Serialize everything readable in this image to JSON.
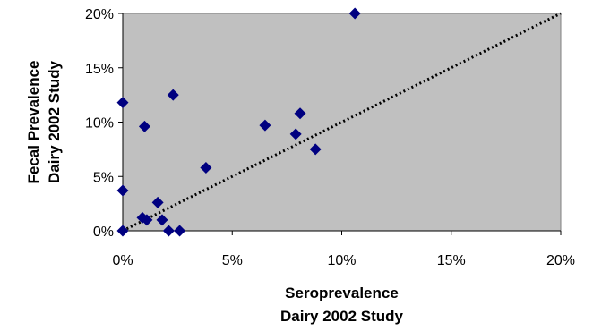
{
  "chart_data": {
    "type": "scatter",
    "xlabel": [
      "Seroprevalence",
      "Dairy 2002 Study"
    ],
    "ylabel": [
      "Fecal Prevalence",
      "Dairy 2002 Study"
    ],
    "xlim": [
      0,
      20
    ],
    "ylim": [
      0,
      20
    ],
    "x_ticks": [
      "0%",
      "5%",
      "10%",
      "15%",
      "20%"
    ],
    "y_ticks": [
      "0%",
      "5%",
      "10%",
      "15%",
      "20%"
    ],
    "x_tick_values": [
      0,
      5,
      10,
      15,
      20
    ],
    "y_tick_values": [
      0,
      5,
      10,
      15,
      20
    ],
    "grid": false,
    "plot_background": "#c0c0c0",
    "marker_color": "#000080",
    "marker_shape": "diamond",
    "series": [
      {
        "points": [
          {
            "x": 0.0,
            "y": 11.8
          },
          {
            "x": 0.0,
            "y": 3.7
          },
          {
            "x": 0.0,
            "y": 0.0
          },
          {
            "x": 1.0,
            "y": 9.6
          },
          {
            "x": 0.9,
            "y": 1.2
          },
          {
            "x": 1.1,
            "y": 1.0
          },
          {
            "x": 1.6,
            "y": 2.6
          },
          {
            "x": 1.8,
            "y": 1.0
          },
          {
            "x": 2.1,
            "y": 0.0
          },
          {
            "x": 2.6,
            "y": 0.0
          },
          {
            "x": 2.3,
            "y": 12.5
          },
          {
            "x": 3.8,
            "y": 5.8
          },
          {
            "x": 6.5,
            "y": 9.7
          },
          {
            "x": 7.9,
            "y": 8.9
          },
          {
            "x": 8.1,
            "y": 10.8
          },
          {
            "x": 8.8,
            "y": 7.5
          },
          {
            "x": 10.6,
            "y": 20.0
          }
        ]
      }
    ],
    "reference_line": {
      "style": "dotted",
      "from": [
        0,
        0
      ],
      "to": [
        20,
        20
      ],
      "color": "#000000"
    }
  }
}
